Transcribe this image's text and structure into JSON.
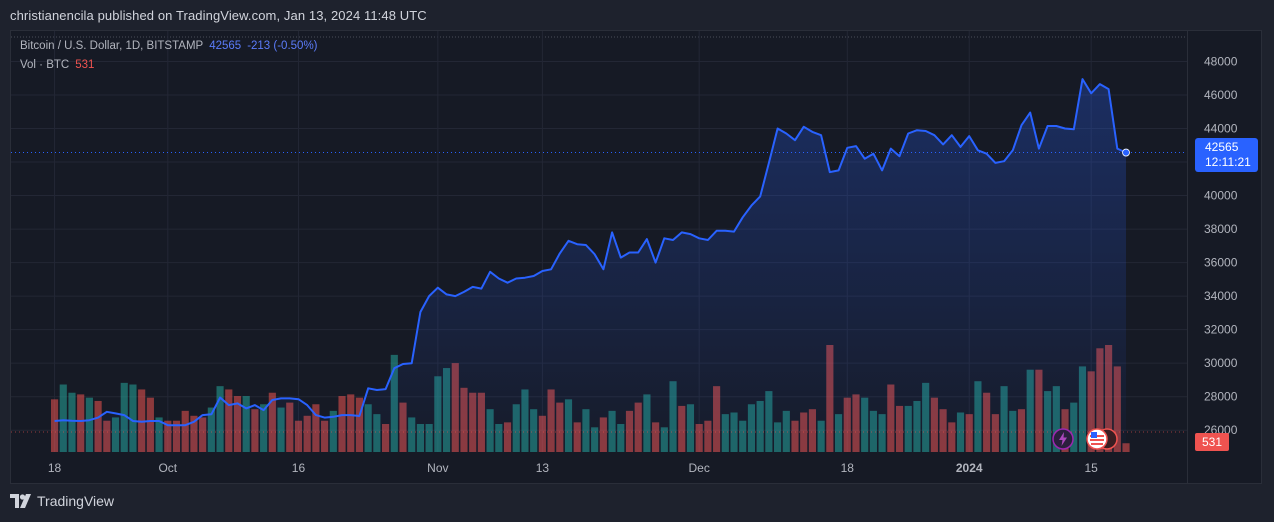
{
  "header": {
    "published_text": "christianencila published on TradingView.com, Jan 13, 2024 11:48 UTC"
  },
  "legend": {
    "symbol": "Bitcoin / U.S. Dollar, 1D, BITSTAMP",
    "last_price": "42565",
    "change": "-213 (-0.50%)",
    "volume_label": "Vol · BTC",
    "volume_value": "531"
  },
  "price_tag": {
    "price": "42565",
    "countdown": "12:11:21"
  },
  "volume_tag": "531",
  "footer": {
    "brand": "TradingView"
  },
  "colors": {
    "line": "#2962ff",
    "up": "#26a69a",
    "down": "#ef5350",
    "background": "#161a25",
    "grid": "#232735",
    "text": "#b2b5be"
  },
  "events": [
    {
      "icon": "lightning-icon"
    },
    {
      "icon": "us-flag-icon"
    }
  ],
  "chart_data": {
    "type": "area",
    "title": "Bitcoin / U.S. Dollar, 1D, BITSTAMP",
    "y_ticks": [
      26000,
      28000,
      30000,
      32000,
      34000,
      36000,
      38000,
      40000,
      42000,
      44000,
      46000,
      48000
    ],
    "y_tick_labels": [
      "26000",
      "28000",
      "30000",
      "32000",
      "34000",
      "36000",
      "38000",
      "40000",
      "42000",
      "44000",
      "46000",
      "48000"
    ],
    "x_tick_labels": [
      {
        "label": "18",
        "day": 0
      },
      {
        "label": "Oct",
        "day": 13
      },
      {
        "label": "16",
        "day": 28
      },
      {
        "label": "Nov",
        "day": 44
      },
      {
        "label": "13",
        "day": 56
      },
      {
        "label": "Dec",
        "day": 74
      },
      {
        "label": "18",
        "day": 91
      },
      {
        "label": "2024",
        "day": 105
      },
      {
        "label": "15",
        "day": 119
      }
    ],
    "x_range_days": [
      -5,
      130
    ],
    "ylim": [
      24700,
      49400
    ],
    "last_price": 42565,
    "grid": true,
    "series": [
      {
        "start_date": "2023-09-17",
        "close": [
          26550,
          26600,
          26570,
          26550,
          26600,
          26750,
          27100,
          27000,
          26900,
          26550,
          26500,
          26550,
          26550,
          26300,
          26300,
          26300,
          26500,
          26900,
          26950,
          27950,
          27500,
          27600,
          27300,
          27500,
          27200,
          27800,
          27900,
          27900,
          27850,
          27500,
          26900,
          26750,
          26800,
          26900,
          26900,
          26850,
          28500,
          28400,
          28450,
          29700,
          29950,
          30000,
          33050,
          34000,
          34500,
          34100,
          34000,
          34250,
          34550,
          34450,
          35450,
          35050,
          34800,
          35050,
          35100,
          35200,
          35500,
          35600,
          36550,
          37300,
          37100,
          37050,
          36500,
          35600,
          37800,
          36300,
          36600,
          36600,
          37400,
          36000,
          37450,
          37350,
          37800,
          37700,
          37450,
          37350,
          37900,
          37900,
          37850,
          38700,
          39400,
          39950,
          41950,
          44000,
          43700,
          43300,
          44100,
          43800,
          43600,
          41400,
          41500,
          42850,
          42950,
          42200,
          42500,
          41500,
          42800,
          42350,
          43700,
          43900,
          43850,
          43600,
          43050,
          43600,
          42900,
          43550,
          42700,
          42500,
          41950,
          42050,
          42700,
          44200,
          44950,
          42800,
          44150,
          44150,
          44000,
          43950,
          46950,
          46100,
          46650,
          46350,
          42800,
          42565
        ],
        "volume": [
          3200,
          4100,
          3600,
          3500,
          3300,
          3100,
          1900,
          2100,
          4200,
          4100,
          3800,
          3300,
          2100,
          1900,
          1900,
          2500,
          2200,
          2100,
          2700,
          4000,
          3800,
          3400,
          3400,
          2600,
          2900,
          3600,
          2700,
          3000,
          1900,
          2200,
          2900,
          1900,
          2500,
          3400,
          3500,
          3300,
          2900,
          2300,
          1700,
          5900,
          3000,
          2100,
          1700,
          1700,
          4600,
          5100,
          5400,
          3900,
          3600,
          3600,
          2600,
          1700,
          1800,
          2900,
          3800,
          2600,
          2200,
          3800,
          3000,
          3200,
          1800,
          2600,
          1500,
          2100,
          2500,
          1700,
          2500,
          3000,
          3500,
          1800,
          1500,
          4300,
          2800,
          2900,
          1700,
          1900,
          4000,
          2300,
          2400,
          1900,
          2900,
          3100,
          3700,
          1800,
          2500,
          1900,
          2400,
          2600,
          1900,
          6500,
          2300,
          3300,
          3500,
          3300,
          2500,
          2300,
          4100,
          2800,
          2800,
          3100,
          4200,
          3300,
          2600,
          1800,
          2400,
          2300,
          4300,
          3600,
          2300,
          4000,
          2500,
          2600,
          5000,
          5000,
          3700,
          4000,
          2600,
          3000,
          5200,
          4900,
          6300,
          6500,
          5200,
          531
        ],
        "direction": [
          "d",
          "u",
          "u",
          "d",
          "u",
          "d",
          "d",
          "u",
          "u",
          "u",
          "d",
          "d",
          "u",
          "d",
          "d",
          "d",
          "d",
          "d",
          "u",
          "u",
          "d",
          "d",
          "u",
          "d",
          "u",
          "d",
          "u",
          "d",
          "d",
          "d",
          "d",
          "d",
          "u",
          "d",
          "d",
          "d",
          "u",
          "u",
          "d",
          "u",
          "d",
          "u",
          "u",
          "u",
          "u",
          "u",
          "d",
          "d",
          "d",
          "d",
          "u",
          "u",
          "d",
          "u",
          "u",
          "u",
          "d",
          "d",
          "d",
          "u",
          "d",
          "u",
          "u",
          "d",
          "u",
          "u",
          "d",
          "d",
          "u",
          "d",
          "u",
          "u",
          "d",
          "u",
          "d",
          "d",
          "d",
          "u",
          "u",
          "u",
          "u",
          "u",
          "u",
          "u",
          "u",
          "d",
          "d",
          "d",
          "u",
          "d",
          "u",
          "d",
          "d",
          "u",
          "u",
          "u",
          "d",
          "d",
          "u",
          "u",
          "u",
          "d",
          "d",
          "d",
          "u",
          "d",
          "u",
          "d",
          "d",
          "u",
          "u",
          "d",
          "u",
          "d",
          "u",
          "u",
          "d",
          "u",
          "u",
          "d",
          "d",
          "d",
          "d",
          "d"
        ]
      }
    ]
  }
}
